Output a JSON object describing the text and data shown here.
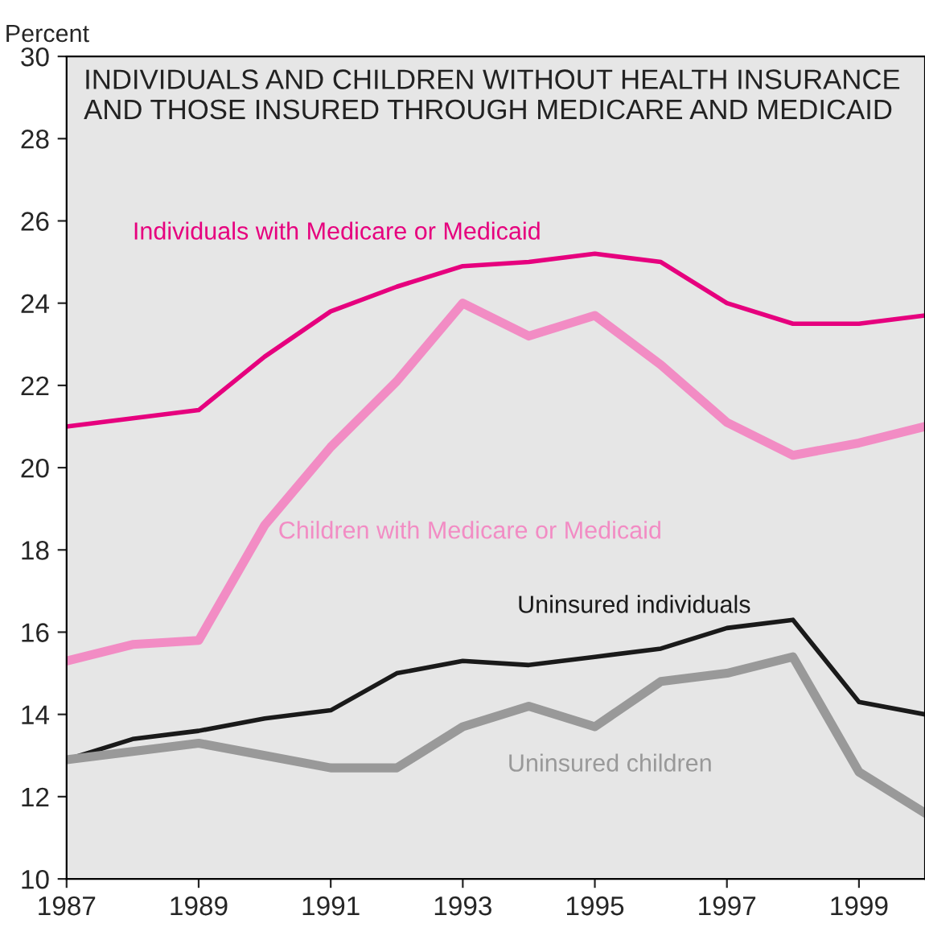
{
  "chart_data": {
    "type": "line",
    "title": "INDIVIDUALS AND CHILDREN WITHOUT HEALTH INSURANCE\nAND THOSE INSURED THROUGH MEDICARE AND MEDICAID",
    "ylabel": "Percent",
    "x": [
      1987,
      1988,
      1989,
      1990,
      1991,
      1992,
      1993,
      1994,
      1995,
      1996,
      1997,
      1998,
      1999,
      2000
    ],
    "series": [
      {
        "name": "Individuals with Medicare or Medicaid",
        "color": "#e6007e",
        "values": [
          21.0,
          21.2,
          21.4,
          22.7,
          23.8,
          24.4,
          24.9,
          25.0,
          25.2,
          25.0,
          24.0,
          23.5,
          23.5,
          23.7
        ]
      },
      {
        "name": "Children with Medicare or Medicaid",
        "color": "#f28cc4",
        "values": [
          15.3,
          15.7,
          15.8,
          18.6,
          20.5,
          22.1,
          24.0,
          23.2,
          23.7,
          22.5,
          21.1,
          20.3,
          20.6,
          21.0
        ]
      },
      {
        "name": "Uninsured individuals",
        "color": "#1a1a1a",
        "values": [
          12.9,
          13.4,
          13.6,
          13.9,
          14.1,
          15.0,
          15.3,
          15.2,
          15.4,
          15.6,
          16.1,
          16.3,
          14.3,
          14.0
        ]
      },
      {
        "name": "Uninsured children",
        "color": "#999999",
        "values": [
          12.9,
          13.1,
          13.3,
          13.0,
          12.7,
          12.7,
          13.7,
          14.2,
          13.7,
          14.8,
          15.0,
          15.4,
          12.6,
          11.6
        ]
      }
    ],
    "xlim": [
      1987,
      2000
    ],
    "xticks": [
      1987,
      1989,
      1991,
      1993,
      1995,
      1997,
      1999
    ],
    "ylim": [
      10,
      30
    ],
    "yticks": [
      10,
      12,
      14,
      16,
      18,
      20,
      22,
      24,
      26,
      28,
      30
    ],
    "grid": false,
    "legend": false,
    "line_style": "solid",
    "marker": "none"
  }
}
